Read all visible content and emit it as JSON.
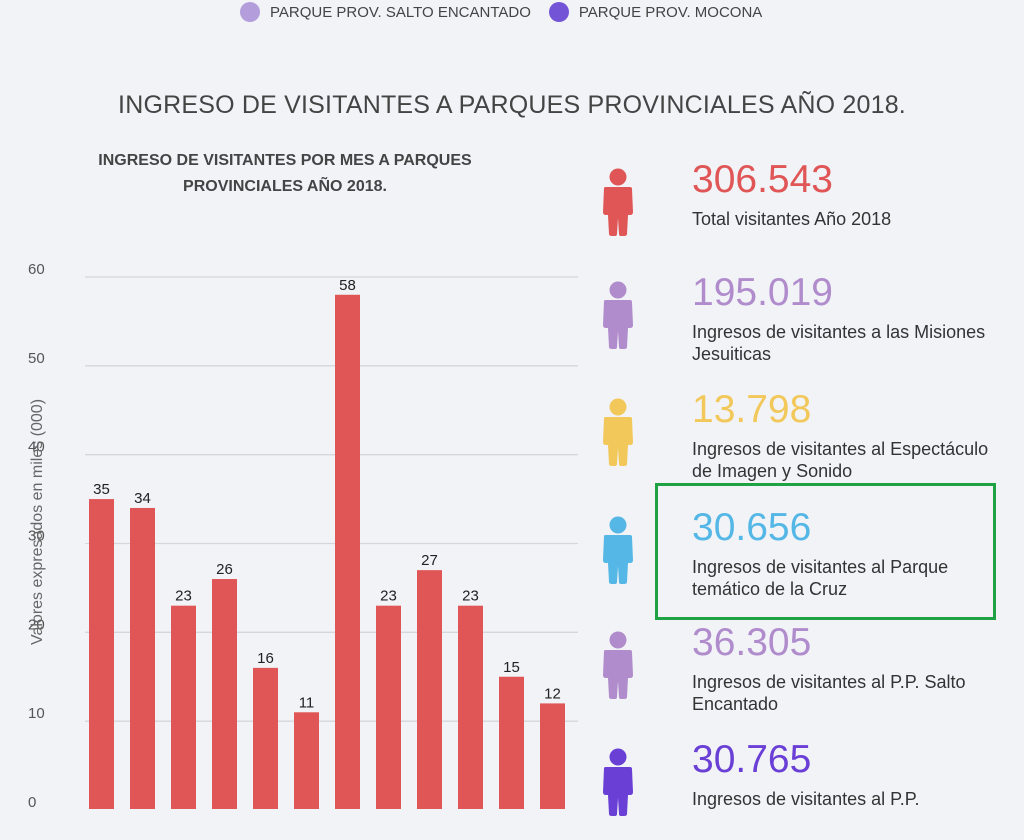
{
  "legend": [
    {
      "label": "PARQUE PROV. SALTO ENCANTADO",
      "color": "#b39ddb"
    },
    {
      "label": "PARQUE PROV. MOCONA",
      "color": "#7354d6"
    }
  ],
  "main_title": "INGRESO DE VISITANTES  A PARQUES PROVINCIALES AÑO 2018.",
  "chart_title_line1": "INGRESO DE VISITANTES POR MES A PARQUES",
  "chart_title_line2": "PROVINCIALES AÑO 2018.",
  "chart_data": {
    "type": "bar",
    "ylabel": "Valores expresados en miles (000)",
    "ylim": [
      0,
      60
    ],
    "yticks": [
      0,
      10,
      20,
      30,
      40,
      50,
      60
    ],
    "values": [
      35,
      34,
      23,
      26,
      16,
      11,
      58,
      23,
      27,
      23,
      15,
      12
    ],
    "bar_color": "#e05555",
    "grid": true
  },
  "stats": [
    {
      "value": "306.543",
      "label": "Total visitantes Año 2018",
      "color": "#e05555",
      "icon": "person-icon"
    },
    {
      "value": "195.019",
      "label": "Ingresos de visitantes a las Misiones Jesuiticas",
      "color": "#b08ccc",
      "icon": "person-icon"
    },
    {
      "value": "13.798",
      "label": "Ingresos de visitantes al Espectáculo de Imagen y Sonido",
      "color": "#f2c85b",
      "icon": "person-icon"
    },
    {
      "value": "30.656",
      "label": "Ingresos de visitantes al Parque temático de la Cruz",
      "color": "#55b7e6",
      "icon": "person-icon"
    },
    {
      "value": "36.305",
      "label": "Ingresos de visitantes al P.P. Salto Encantado",
      "color": "#b08ccc",
      "icon": "person-icon"
    },
    {
      "value": "30.765",
      "label": "Ingresos de visitantes al P.P.",
      "color": "#6a3fd6",
      "icon": "person-icon"
    }
  ]
}
